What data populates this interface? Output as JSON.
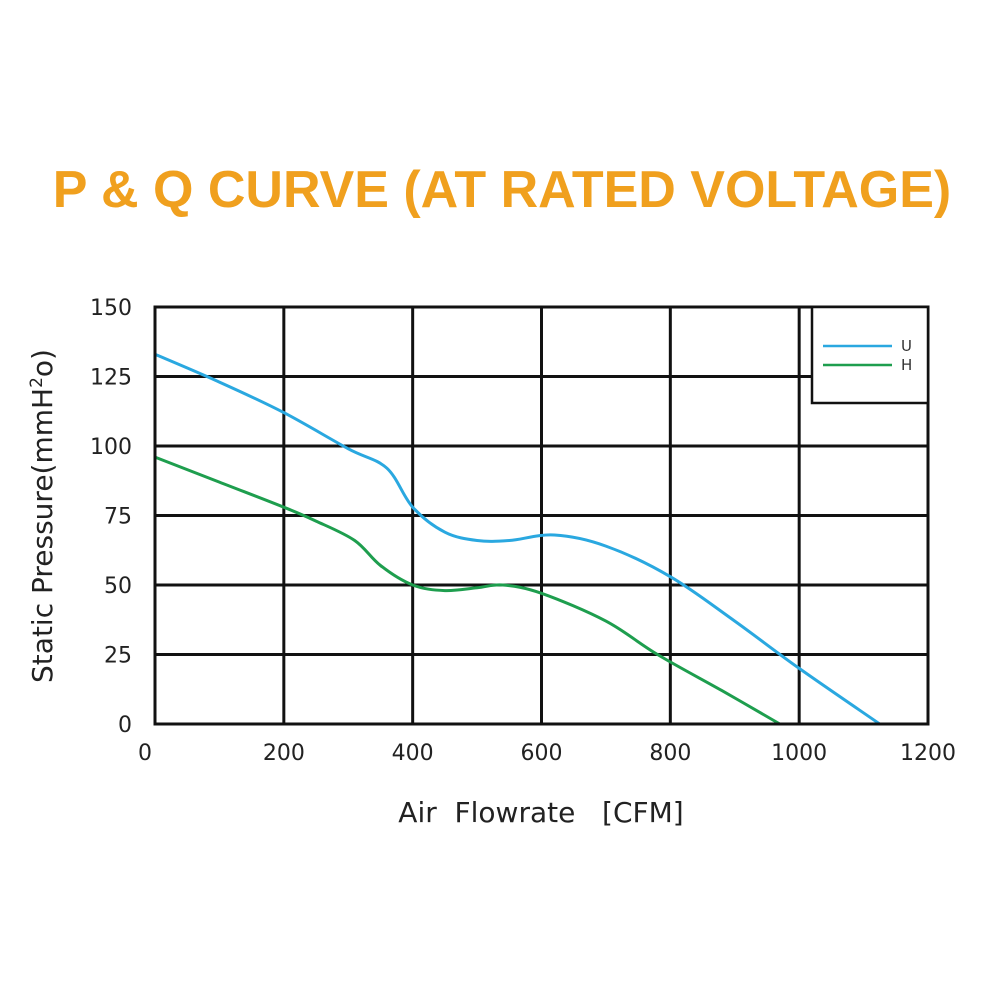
{
  "chart_data": {
    "type": "line",
    "title": "P & Q CURVE (AT RATED VOLTAGE)",
    "xlabel": "Air  Flowrate   [CFM]",
    "ylabel_parts": [
      "Static Pressure(mmH",
      "2",
      "o)"
    ],
    "xlim": [
      0,
      1200
    ],
    "ylim": [
      0,
      150
    ],
    "xticks": [
      0,
      200,
      400,
      600,
      800,
      1000,
      1200
    ],
    "yticks": [
      0,
      25,
      50,
      75,
      100,
      125,
      150
    ],
    "grid": true,
    "legend_position": "top-right",
    "series": [
      {
        "name": "U",
        "color": "#2aa8e0",
        "points": [
          [
            0,
            133
          ],
          [
            100,
            123
          ],
          [
            200,
            112
          ],
          [
            300,
            99
          ],
          [
            360,
            92
          ],
          [
            400,
            78
          ],
          [
            450,
            69
          ],
          [
            500,
            66
          ],
          [
            550,
            66
          ],
          [
            620,
            68
          ],
          [
            700,
            64
          ],
          [
            800,
            53
          ],
          [
            900,
            37
          ],
          [
            1000,
            20
          ],
          [
            1125,
            0
          ]
        ]
      },
      {
        "name": "H",
        "color": "#1e9e4e",
        "points": [
          [
            0,
            96
          ],
          [
            100,
            87
          ],
          [
            200,
            78
          ],
          [
            250,
            73
          ],
          [
            310,
            66
          ],
          [
            350,
            57
          ],
          [
            400,
            50
          ],
          [
            450,
            48
          ],
          [
            500,
            49
          ],
          [
            540,
            50
          ],
          [
            600,
            47
          ],
          [
            700,
            37
          ],
          [
            780,
            25
          ],
          [
            880,
            12
          ],
          [
            970,
            0
          ]
        ]
      }
    ]
  }
}
